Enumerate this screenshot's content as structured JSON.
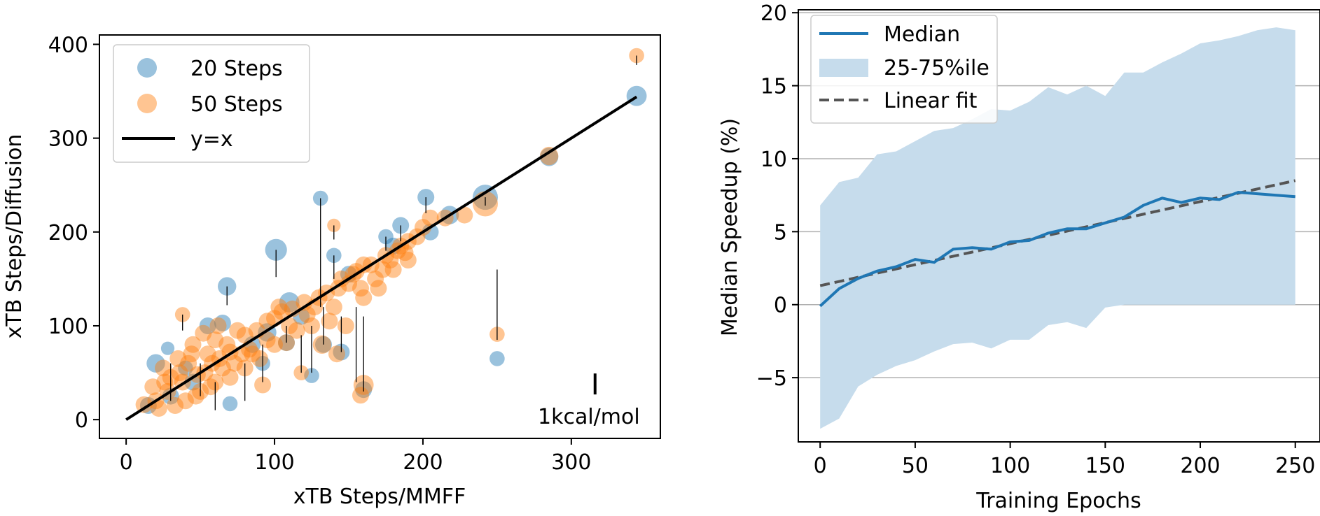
{
  "chart_data": [
    {
      "type": "scatter",
      "xlabel": "xTB Steps/MMFF",
      "ylabel": "xTB Steps/Diffusion",
      "xlim": [
        -18,
        360
      ],
      "ylim": [
        -20,
        410
      ],
      "xticks": [
        0,
        100,
        200,
        300
      ],
      "yticks": [
        0,
        100,
        200,
        300,
        400
      ],
      "grid": false,
      "legend": {
        "placement": "top-left",
        "entries": [
          {
            "label": "20 Steps",
            "marker": "circle",
            "color": "#1f77b4"
          },
          {
            "label": "50 Steps",
            "marker": "circle",
            "color": "#ff7f0e"
          },
          {
            "label": "y=x",
            "marker": "line",
            "color": "#000000"
          }
        ]
      },
      "annotation": {
        "text": "1kcal/mol",
        "marker_x": 316,
        "marker_y": 38,
        "placement": "bottom-right"
      },
      "series": [
        {
          "name": "20 Steps",
          "color": "#1f77b4",
          "points": [
            [
              344,
              345,
              1.2
            ],
            [
              131,
              236,
              0.9
            ],
            [
              101,
              181,
              1.3
            ],
            [
              202,
              237,
              1.0
            ],
            [
              68,
              142,
              1.1
            ],
            [
              140,
              175,
              0.9
            ],
            [
              150,
              155,
              1.0
            ],
            [
              110,
              125,
              1.2
            ],
            [
              250,
              65,
              0.9
            ],
            [
              242,
              237,
              1.5
            ],
            [
              185,
              207,
              1.0
            ],
            [
              175,
              195,
              0.9
            ],
            [
              70,
              17,
              0.9
            ],
            [
              20,
              60,
              1.1
            ],
            [
              28,
              76,
              0.8
            ],
            [
              125,
              47,
              0.9
            ],
            [
              145,
              72,
              1.0
            ],
            [
              133,
              80,
              1.0
            ],
            [
              160,
              32,
              1.0
            ],
            [
              55,
              100,
              1.0
            ],
            [
              65,
              103,
              1.0
            ],
            [
              95,
              93,
              1.1
            ],
            [
              180,
              185,
              1.0
            ],
            [
              205,
              200,
              1.0
            ],
            [
              218,
              218,
              1.1
            ],
            [
              85,
              80,
              1.0
            ],
            [
              45,
              40,
              1.0
            ],
            [
              30,
              25,
              1.0
            ],
            [
              15,
              15,
              1.0
            ],
            [
              118,
              110,
              1.0
            ],
            [
              92,
              60,
              0.9
            ],
            [
              40,
              55,
              0.9
            ],
            [
              285,
              280,
              1.1
            ],
            [
              108,
              82,
              1.0
            ]
          ]
        },
        {
          "name": "50 Steps",
          "color": "#ff7f0e",
          "points": [
            [
              344,
              388,
              0.9
            ],
            [
              242,
              230,
              1.5
            ],
            [
              285,
              281,
              1.1
            ],
            [
              250,
              91,
              0.9
            ],
            [
              140,
              207,
              0.8
            ],
            [
              38,
              112,
              0.9
            ],
            [
              160,
              37,
              1.2
            ],
            [
              158,
              26,
              1.0
            ],
            [
              118,
              50,
              0.9
            ],
            [
              92,
              37,
              1.0
            ],
            [
              132,
              80,
              1.1
            ],
            [
              142,
              70,
              1.0
            ],
            [
              108,
              82,
              1.0
            ],
            [
              60,
              85,
              1.0
            ],
            [
              190,
              170,
              1.0
            ],
            [
              168,
              150,
              1.0
            ],
            [
              150,
              145,
              1.0
            ],
            [
              130,
              130,
              1.0
            ],
            [
              112,
              118,
              1.0
            ],
            [
              100,
              108,
              1.0
            ],
            [
              80,
              90,
              1.0
            ],
            [
              70,
              72,
              1.0
            ],
            [
              58,
              60,
              1.0
            ],
            [
              48,
              48,
              1.0
            ],
            [
              38,
              40,
              1.0
            ],
            [
              28,
              30,
              1.0
            ],
            [
              20,
              20,
              1.0
            ],
            [
              12,
              16,
              1.0
            ],
            [
              25,
              55,
              1.0
            ],
            [
              35,
              65,
              1.0
            ],
            [
              45,
              80,
              1.0
            ],
            [
              52,
              92,
              1.0
            ],
            [
              62,
              100,
              1.0
            ],
            [
              75,
              95,
              1.0
            ],
            [
              88,
              95,
              1.0
            ],
            [
              95,
              105,
              1.0
            ],
            [
              105,
              115,
              1.0
            ],
            [
              120,
              125,
              1.0
            ],
            [
              135,
              135,
              1.0
            ],
            [
              145,
              150,
              1.0
            ],
            [
              155,
              158,
              1.0
            ],
            [
              165,
              165,
              1.0
            ],
            [
              175,
              175,
              1.0
            ],
            [
              183,
              180,
              1.0
            ],
            [
              200,
              205,
              1.0
            ],
            [
              205,
              215,
              1.0
            ],
            [
              215,
              215,
              1.0
            ],
            [
              228,
              218,
              1.0
            ],
            [
              40,
              20,
              1.0
            ],
            [
              50,
              30,
              1.0
            ],
            [
              60,
              40,
              1.0
            ],
            [
              70,
              45,
              1.0
            ],
            [
              80,
              55,
              1.0
            ],
            [
              90,
              65,
              1.0
            ],
            [
              30,
              45,
              1.0
            ],
            [
              42,
              60,
              1.0
            ],
            [
              55,
              70,
              1.0
            ],
            [
              68,
              80,
              1.0
            ],
            [
              78,
              70,
              1.0
            ],
            [
              100,
              80,
              1.0
            ],
            [
              115,
              95,
              1.0
            ],
            [
              125,
              100,
              1.0
            ],
            [
              140,
              120,
              1.0
            ],
            [
              160,
              130,
              1.0
            ],
            [
              170,
              140,
              1.0
            ],
            [
              180,
              160,
              1.0
            ],
            [
              190,
              190,
              1.0
            ],
            [
              18,
              35,
              1.0
            ],
            [
              22,
              12,
              1.0
            ],
            [
              33,
              15,
              1.0
            ],
            [
              47,
              25,
              1.0
            ],
            [
              57,
              35,
              1.0
            ],
            [
              65,
              55,
              1.0
            ],
            [
              85,
              70,
              1.0
            ],
            [
              95,
              85,
              1.0
            ],
            [
              110,
              100,
              1.0
            ],
            [
              122,
              112,
              1.0
            ],
            [
              137,
              105,
              1.0
            ],
            [
              148,
              100,
              1.0
            ],
            [
              158,
              140,
              1.0
            ],
            [
              173,
              160,
              1.0
            ],
            [
              185,
              185,
              1.0
            ],
            [
              196,
              195,
              1.0
            ],
            [
              26,
              40,
              1.0
            ],
            [
              36,
              50,
              1.0
            ],
            [
              44,
              70,
              1.0
            ],
            [
              53,
              50,
              1.0
            ],
            [
              63,
              65,
              1.0
            ],
            [
              73,
              60,
              1.0
            ],
            [
              83,
              75,
              1.0
            ],
            [
              103,
              120,
              1.0
            ],
            [
              127,
              120,
              1.0
            ],
            [
              143,
              140,
              1.0
            ],
            [
              153,
              155,
              1.0
            ],
            [
              160,
              165,
              1.0
            ],
            [
              178,
              170,
              1.0
            ],
            [
              188,
              178,
              1.0
            ]
          ]
        },
        {
          "name": "y=x",
          "type": "line",
          "color": "#000000",
          "x": [
            0,
            344
          ],
          "y": [
            0,
            344
          ]
        }
      ],
      "error_segments": [
        [
          131,
          236,
          131,
          120
        ],
        [
          101,
          181,
          101,
          152
        ],
        [
          68,
          142,
          68,
          122
        ],
        [
          140,
          175,
          140,
          150
        ],
        [
          250,
          160,
          250,
          85
        ],
        [
          160,
          110,
          160,
          30
        ],
        [
          155,
          120,
          155,
          40
        ],
        [
          242,
          237,
          242,
          228
        ],
        [
          202,
          237,
          202,
          220
        ],
        [
          38,
          112,
          38,
          95
        ],
        [
          140,
          207,
          140,
          192
        ],
        [
          344,
          388,
          344,
          378
        ],
        [
          125,
          100,
          125,
          50
        ],
        [
          133,
          120,
          133,
          80
        ],
        [
          145,
          110,
          145,
          72
        ],
        [
          92,
          80,
          92,
          40
        ],
        [
          118,
          90,
          118,
          50
        ],
        [
          108,
          100,
          108,
          82
        ],
        [
          80,
          60,
          80,
          20
        ],
        [
          60,
          40,
          60,
          10
        ],
        [
          30,
          60,
          30,
          20
        ],
        [
          50,
          60,
          50,
          25
        ],
        [
          185,
          207,
          185,
          190
        ],
        [
          175,
          195,
          175,
          180
        ]
      ]
    },
    {
      "type": "line",
      "xlabel": "Training Epochs",
      "ylabel": "Median Speedup (%)",
      "xlim": [
        -11.5,
        263
      ],
      "ylim": [
        -9.4,
        20.2
      ],
      "xticks": [
        0,
        50,
        100,
        150,
        200,
        250
      ],
      "yticks": [
        -5,
        0,
        5,
        10,
        15,
        20
      ],
      "ytick_labels": [
        "−5",
        "0",
        "5",
        "10",
        "15",
        "20"
      ],
      "grid": "horizontal",
      "legend": {
        "placement": "top-left",
        "entries": [
          {
            "label": "Median",
            "marker": "line",
            "color": "#1f77b4"
          },
          {
            "label": "25-75%ile",
            "marker": "patch",
            "color": "#c6dcec"
          },
          {
            "label": "Linear fit",
            "marker": "dashed-line",
            "color": "#555555"
          }
        ]
      },
      "x": [
        0,
        10,
        20,
        30,
        40,
        50,
        60,
        70,
        80,
        90,
        100,
        110,
        120,
        130,
        140,
        150,
        160,
        170,
        180,
        190,
        200,
        210,
        220,
        230,
        240,
        250
      ],
      "series": [
        {
          "name": "Median",
          "color": "#1f77b4",
          "values": [
            -0.1,
            1.1,
            1.8,
            2.3,
            2.6,
            3.1,
            2.9,
            3.8,
            3.9,
            3.8,
            4.3,
            4.4,
            4.9,
            5.2,
            5.2,
            5.6,
            6.0,
            6.8,
            7.3,
            7.0,
            7.3,
            7.2,
            7.7,
            7.6,
            7.5,
            7.4
          ]
        },
        {
          "name": "25-75%ile",
          "type": "band",
          "color": "#c6dcec",
          "lower": [
            -8.5,
            -7.8,
            -5.6,
            -4.8,
            -4.2,
            -3.8,
            -3.2,
            -2.7,
            -2.6,
            -3.0,
            -2.4,
            -2.4,
            -1.4,
            -1.2,
            -1.6,
            -0.2,
            0.0,
            0.0,
            0.0,
            0.0,
            0.0,
            0.0,
            0.0,
            0.0,
            0.0,
            0.0
          ],
          "upper": [
            6.8,
            8.4,
            8.7,
            10.3,
            10.5,
            11.2,
            11.9,
            12.1,
            12.7,
            13.4,
            13.3,
            13.9,
            14.9,
            14.4,
            15.0,
            14.3,
            15.9,
            15.9,
            16.6,
            17.2,
            17.9,
            18.1,
            18.4,
            18.8,
            19.0,
            18.8
          ]
        },
        {
          "name": "Linear fit",
          "type": "line",
          "style": "dashed",
          "color": "#555555",
          "x": [
            0,
            250
          ],
          "values": [
            1.3,
            8.5
          ]
        }
      ]
    }
  ]
}
